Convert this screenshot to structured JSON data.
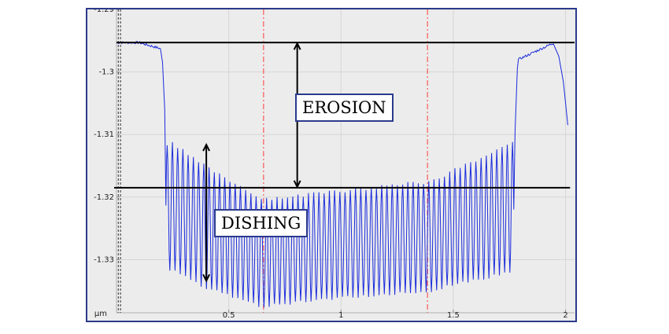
{
  "chart_data": {
    "type": "line",
    "title": "",
    "xlabel": "",
    "ylabel": "µm",
    "xlim": [
      0,
      2.04
    ],
    "ylim": [
      -1.3385,
      -1.29
    ],
    "x_ticks": [
      "0.5",
      "1",
      "1.5",
      "2"
    ],
    "x_tick_values": [
      0.5,
      1,
      1.5,
      2
    ],
    "y_ticks": [
      "-1.29",
      "-1.3",
      "-1.31",
      "-1.32",
      "-1.33"
    ],
    "y_tick_values": [
      -1.29,
      -1.3,
      -1.31,
      -1.32,
      -1.33
    ],
    "y_unit_label": "µm",
    "grid": true,
    "series": [
      {
        "color": "#1a2bdc",
        "profile": {
          "plateau_left": {
            "x": [
              0.0,
              0.22
            ],
            "y": -1.2953
          },
          "trench_region": {
            "x": [
              0.22,
              1.77
            ]
          },
          "plateau_right": {
            "x": [
              1.77,
              2.02
            ],
            "y": -1.2953
          },
          "line_tops_y": {
            "at_0.25": -1.3115,
            "at_0.65": -1.3205,
            "at_1.0": -1.319,
            "at_1.75": -1.3115
          },
          "trench_bottoms_y": {
            "at_0.25": -1.3315,
            "at_0.65": -1.3375,
            "at_1.0": -1.336,
            "at_1.75": -1.332
          },
          "end_y": -1.3085
        }
      }
    ],
    "reference_lines": {
      "plateau_level": -1.2953,
      "dishing_level": -1.3185,
      "measure_cursors_x": [
        0.655,
        1.385
      ],
      "left_cursors_x": [
        0.008,
        0.018
      ]
    },
    "annotations": [
      {
        "text": "EROSION",
        "arrow_x": 0.805,
        "from_y": -1.2953,
        "to_y": -1.3185
      },
      {
        "text": "DISHING",
        "arrow_x": 0.4,
        "from_y": -1.3115,
        "to_y": -1.3335
      }
    ],
    "colors": {
      "series": "#1a2bdc",
      "cursor": "#ff3b3b",
      "reference": "#000000",
      "frame": "#2b3a8c",
      "background": "#ececec",
      "grid": "#d6d6d6"
    }
  }
}
